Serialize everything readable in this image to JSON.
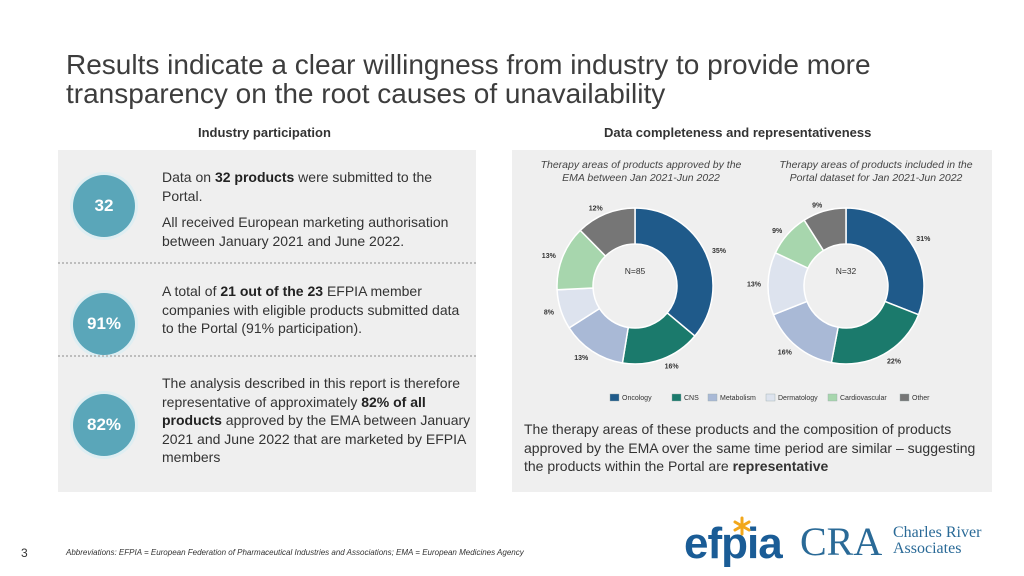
{
  "title": "Results indicate a clear willingness from industry to provide more transparency on the root causes of unavailability",
  "left_heading": "Industry participation",
  "right_heading": "Data completeness and representativeness",
  "stats": [
    {
      "badge": "32",
      "parts": [
        [
          {
            "t": "Data on "
          },
          {
            "t": "32 products",
            "b": true
          },
          {
            "t": " were submitted to the Portal."
          }
        ],
        [
          {
            "t": "All received European marketing authorisation between January 2021 and June 2022."
          }
        ]
      ]
    },
    {
      "badge": "91%",
      "parts": [
        [
          {
            "t": "A total of "
          },
          {
            "t": "21 out of the 23",
            "b": true
          },
          {
            "t": " EFPIA member companies with eligible products submitted data to the Portal (91% participation)."
          }
        ]
      ]
    },
    {
      "badge": "82%",
      "parts": [
        [
          {
            "t": "The analysis described in this report is therefore representative of approximately "
          },
          {
            "t": "82% of all products",
            "b": true
          },
          {
            "t": " approved by the EMA between January 2021 and June 2022 that are marketed by EFPIA members"
          }
        ]
      ]
    }
  ],
  "colors": {
    "Oncology": "#1f5a8a",
    "CNS": "#1b7a6c",
    "Metabolism": "#a9b9d6",
    "Dermatology": "#dde3ee",
    "Cardiovascular": "#a7d6ad",
    "Other": "#767676"
  },
  "chart_data": [
    {
      "type": "pie",
      "title": "Therapy areas of products approved by the EMA between Jan 2021-Jun 2022",
      "center_label": "N=85",
      "categories": [
        "Oncology",
        "CNS",
        "Metabolism",
        "Dermatology",
        "Cardiovascular",
        "Other"
      ],
      "values": [
        35,
        16,
        13,
        8,
        13,
        12
      ],
      "labels": [
        "35%",
        "16%",
        "13%",
        "8%",
        "13%",
        "12%"
      ]
    },
    {
      "type": "pie",
      "title": "Therapy areas of products included in the Portal dataset for Jan 2021-Jun 2022",
      "center_label": "N=32",
      "categories": [
        "Oncology",
        "CNS",
        "Metabolism",
        "Dermatology",
        "Cardiovascular",
        "Other"
      ],
      "values": [
        31,
        22,
        16,
        13,
        9,
        9
      ],
      "labels": [
        "31%",
        "22%",
        "16%",
        "13%",
        "9%",
        "9%"
      ]
    }
  ],
  "legend": [
    "Oncology",
    "CNS",
    "Metabolism",
    "Dermatology",
    "Cardiovascular",
    "Other"
  ],
  "summary": [
    {
      "t": "The therapy areas of these products and the composition of products approved by the EMA over the same time period are similar – suggesting the products within the Portal are "
    },
    {
      "t": "representative",
      "b": true
    }
  ],
  "footer": {
    "page_number": "3",
    "abbreviations": "Abbreviations: EFPIA = European Federation of Pharmaceutical Industries and Associations; EMA = European Medicines Agency"
  },
  "logos": {
    "efpia": "efpia",
    "cra": "CRA",
    "cra_name_1": "Charles River",
    "cra_name_2": "Associates"
  }
}
